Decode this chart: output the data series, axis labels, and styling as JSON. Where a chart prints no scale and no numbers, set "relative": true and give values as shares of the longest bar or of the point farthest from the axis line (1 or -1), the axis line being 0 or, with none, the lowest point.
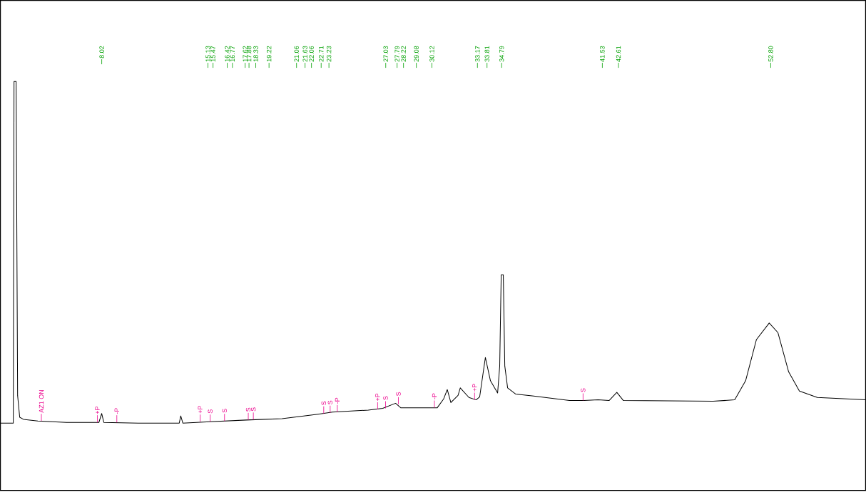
{
  "chart_data": {
    "type": "line",
    "relative": true,
    "marker": "none",
    "line_style": "solid",
    "xlim": [
      1.24,
      59.15
    ],
    "xticks": [
      8.02,
      15.13,
      15.47,
      16.42,
      16.77,
      17.62,
      17.88,
      18.33,
      19.22,
      21.06,
      21.63,
      22.06,
      22.71,
      23.23,
      27.03,
      27.79,
      28.22,
      29.08,
      30.12,
      33.17,
      33.81,
      34.79,
      41.53,
      42.61,
      {
        "value": 52.8,
        "label": "52.80"
      }
    ],
    "x": [
      1.24,
      2.1,
      2.15,
      2.29,
      2.39,
      2.53,
      2.78,
      3.74,
      5.66,
      7.83,
      8.02,
      8.16,
      10.47,
      13.21,
      13.31,
      13.45,
      15.28,
      17.69,
      20.09,
      22.5,
      23.46,
      25.86,
      26.83,
      27.69,
      28.03,
      29.71,
      30.48,
      30.91,
      31.15,
      31.39,
      31.87,
      32.02,
      32.6,
      33.08,
      33.32,
      33.7,
      34.04,
      34.52,
      34.66,
      34.76,
      34.9,
      35.0,
      35.19,
      35.72,
      36.93,
      39.33,
      40.29,
      41.25,
      41.98,
      42.5,
      42.94,
      48.95,
      50.39,
      51.12,
      51.84,
      52.7,
      53.28,
      54.0,
      54.72,
      55.92,
      59.15
    ],
    "series": [
      {
        "color": "#000000",
        "values": [
          0,
          0,
          1,
          1,
          0.081,
          0.017,
          0.011,
          0.006,
          0.002,
          0.002,
          0.028,
          0.002,
          0,
          0,
          0.021,
          0,
          0.004,
          0.009,
          0.013,
          0.026,
          0.032,
          0.038,
          0.043,
          0.058,
          0.045,
          0.045,
          0.045,
          0.071,
          0.098,
          0.06,
          0.081,
          0.103,
          0.075,
          0.068,
          0.077,
          0.192,
          0.124,
          0.088,
          0.167,
          0.434,
          0.434,
          0.167,
          0.103,
          0.085,
          0.079,
          0.066,
          0.066,
          0.068,
          0.066,
          0.09,
          0.066,
          0.064,
          0.068,
          0.124,
          0.244,
          0.293,
          0.265,
          0.15,
          0.094,
          0.075,
          0.068
        ]
      }
    ],
    "annotations": [
      {
        "text": "AZ1 ON",
        "x": 3.98,
        "y": 0.006
      },
      {
        "text": "+P",
        "x": 7.73,
        "y": 0.002
      },
      {
        "text": "-P",
        "x": 9.03,
        "y": 0.002
      },
      {
        "text": "+P",
        "x": 14.61,
        "y": 0.004
      },
      {
        "text": "S",
        "x": 15.28,
        "y": 0.004
      },
      {
        "text": "S",
        "x": 16.24,
        "y": 0.006
      },
      {
        "text": "S",
        "x": 17.83,
        "y": 0.009
      },
      {
        "text": "S",
        "x": 18.17,
        "y": 0.01
      },
      {
        "text": "S",
        "x": 22.88,
        "y": 0.028
      },
      {
        "text": "S",
        "x": 23.31,
        "y": 0.03
      },
      {
        "text": "-P",
        "x": 23.79,
        "y": 0.032
      },
      {
        "text": "+P",
        "x": 26.49,
        "y": 0.04
      },
      {
        "text": "S",
        "x": 27.02,
        "y": 0.043
      },
      {
        "text": "S",
        "x": 27.88,
        "y": 0.055
      },
      {
        "text": "-P",
        "x": 30.29,
        "y": 0.045
      },
      {
        "text": "+P",
        "x": 32.98,
        "y": 0.068
      },
      {
        "text": "S",
        "x": 40.24,
        "y": 0.066
      }
    ]
  }
}
